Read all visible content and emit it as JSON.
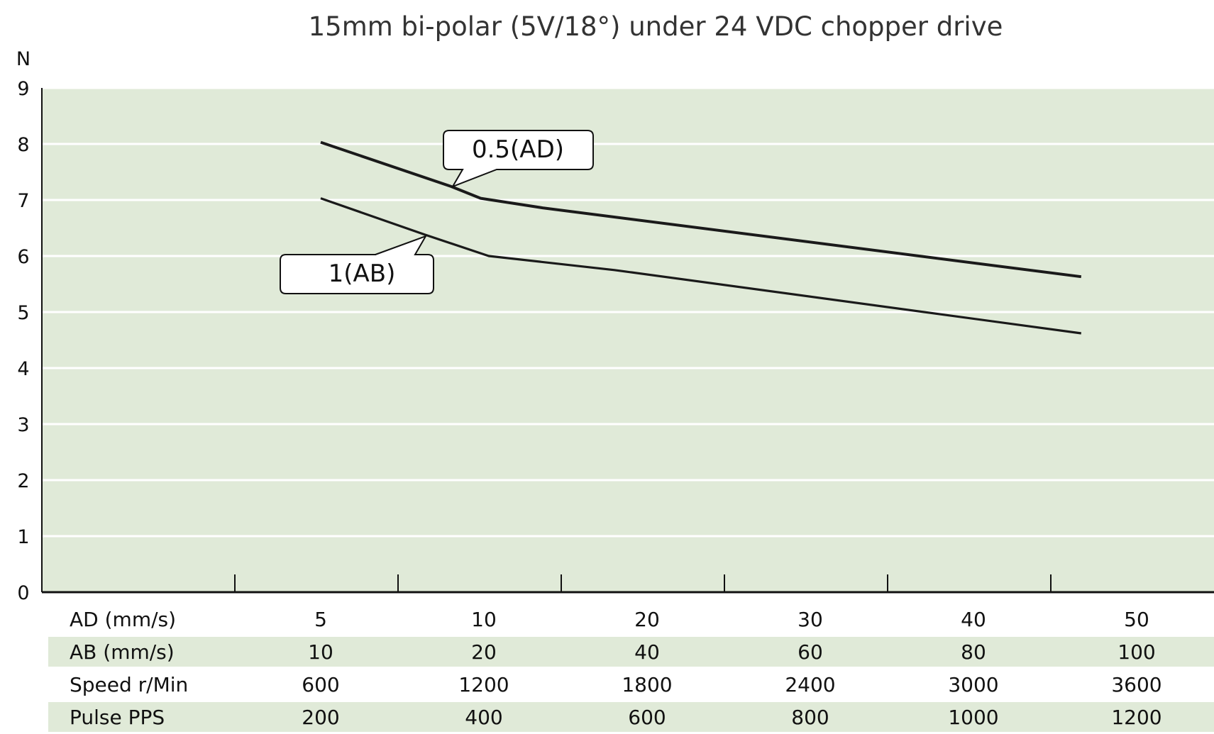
{
  "chart_data": {
    "type": "line",
    "title": "15mm bi-polar (5V/18°) under 24 VDC chopper drive",
    "ylabel": "N",
    "ylim": [
      0,
      9
    ],
    "yticks": [
      "0",
      "1",
      "2",
      "3",
      "4",
      "5",
      "6",
      "7",
      "8",
      "9"
    ],
    "grid": true,
    "colors": {
      "plot_bg": "#e0ead8",
      "grid": "#ffffff",
      "line": "#1a1a1a",
      "row_stripe": "#e0ead8"
    },
    "x_axis_table": [
      {
        "label": "AD (mm/s)",
        "values": [
          "5",
          "10",
          "20",
          "30",
          "40",
          "50"
        ]
      },
      {
        "label": "AB (mm/s)",
        "values": [
          "10",
          "20",
          "40",
          "60",
          "80",
          "100"
        ]
      },
      {
        "label": "Speed  r/Min",
        "values": [
          "600",
          "1200",
          "1800",
          "2400",
          "3000",
          "3600"
        ]
      },
      {
        "label": "Pulse  PPS",
        "values": [
          "200",
          "400",
          "600",
          "800",
          "1000",
          "1200"
        ]
      }
    ],
    "x_units": "AD (mm/s)",
    "series": [
      {
        "name": "0.5(AD)",
        "points": [
          [
            5,
            8.03
          ],
          [
            9.0,
            7.24
          ],
          [
            9.9,
            7.03
          ],
          [
            13.6,
            6.86
          ],
          [
            46.6,
            5.63
          ]
        ]
      },
      {
        "name": "1(AB)",
        "points": [
          [
            5,
            7.03
          ],
          [
            8.2,
            6.38
          ],
          [
            10.3,
            6.0
          ],
          [
            18,
            5.75
          ],
          [
            46.6,
            4.62
          ]
        ]
      }
    ]
  }
}
